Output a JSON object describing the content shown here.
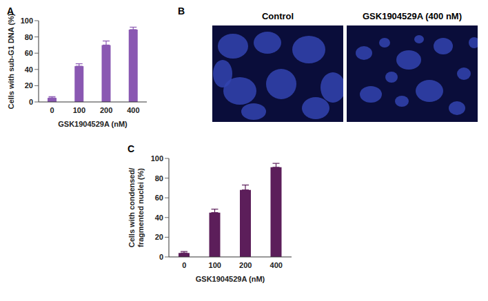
{
  "chart_data": [
    {
      "type": "bar",
      "annotations": [
        "A"
      ],
      "categories": [
        "0",
        "100",
        "200",
        "400"
      ],
      "values": [
        5,
        44,
        70,
        89
      ],
      "errors": [
        1.5,
        3,
        5,
        3
      ],
      "color": "#8a58b2",
      "xlabel": "GSK1904529A (nM)",
      "ylabel": "Cells with sub-G1 DNA (%)",
      "ylim": [
        0,
        100
      ],
      "yticks": [
        0,
        20,
        40,
        60,
        80,
        100
      ],
      "grid": false
    },
    {
      "type": "bar",
      "annotations": [
        "C"
      ],
      "categories": [
        "0",
        "100",
        "200",
        "400"
      ],
      "values": [
        4,
        45,
        68,
        91
      ],
      "errors": [
        1.5,
        3.5,
        5,
        4
      ],
      "color": "#5c1e5a",
      "xlabel": "GSK1904529A (nM)",
      "ylabel": "Cells with condensed/\nfragmented nuclei (%)",
      "ylim": [
        0,
        100
      ],
      "yticks": [
        0,
        20,
        40,
        60,
        80,
        100
      ],
      "grid": false
    }
  ],
  "images": {
    "label": "B",
    "titles": [
      "Control",
      "GSK1904529A (400 nM)"
    ]
  }
}
